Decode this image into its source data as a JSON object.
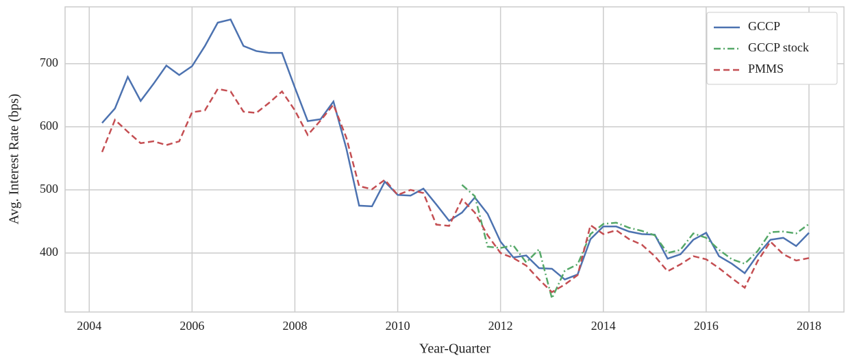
{
  "chart_data": {
    "type": "line",
    "xlabel": "Year-Quarter",
    "ylabel": "Avg. Interest Rate (bps)",
    "x": [
      2004.25,
      2004.5,
      2004.75,
      2005,
      2005.25,
      2005.5,
      2005.75,
      2006,
      2006.25,
      2006.5,
      2006.75,
      2007,
      2007.25,
      2007.5,
      2007.75,
      2008,
      2008.25,
      2008.5,
      2008.75,
      2009,
      2009.25,
      2009.5,
      2009.75,
      2010,
      2010.25,
      2010.5,
      2010.75,
      2011,
      2011.25,
      2011.5,
      2011.75,
      2012,
      2012.25,
      2012.5,
      2012.75,
      2013,
      2013.25,
      2013.5,
      2013.75,
      2014,
      2014.25,
      2014.5,
      2014.75,
      2015,
      2015.25,
      2015.5,
      2015.75,
      2016,
      2016.25,
      2016.5,
      2016.75,
      2017,
      2017.25,
      2017.5,
      2017.75,
      2018
    ],
    "series": [
      {
        "name": "GCCP",
        "color": "#4c72b0",
        "linestyle": "solid",
        "values": [
          606,
          629,
          679,
          641,
          668,
          697,
          682,
          696,
          728,
          765,
          770,
          728,
          720,
          717,
          717,
          662,
          609,
          612,
          640,
          566,
          475,
          474,
          513,
          492,
          491,
          502,
          477,
          451,
          464,
          488,
          462,
          418,
          393,
          396,
          376,
          375,
          358,
          366,
          422,
          442,
          442,
          434,
          430,
          429,
          391,
          398,
          421,
          432,
          395,
          383,
          368,
          397,
          421,
          424,
          411,
          432
        ]
      },
      {
        "name": "GCCP stock",
        "color": "#55a868",
        "linestyle": "dashdot",
        "values": [
          null,
          null,
          null,
          null,
          null,
          null,
          null,
          null,
          null,
          null,
          null,
          null,
          null,
          null,
          null,
          null,
          null,
          null,
          null,
          null,
          null,
          null,
          null,
          null,
          null,
          null,
          null,
          null,
          508,
          490,
          410,
          408,
          412,
          385,
          406,
          328,
          372,
          382,
          430,
          446,
          448,
          440,
          435,
          428,
          400,
          405,
          431,
          424,
          405,
          390,
          383,
          403,
          433,
          434,
          431,
          446
        ]
      },
      {
        "name": "PMMS",
        "color": "#c44e52",
        "linestyle": "dashed",
        "values": [
          560,
          611,
          592,
          574,
          577,
          571,
          577,
          623,
          626,
          660,
          656,
          624,
          622,
          638,
          656,
          626,
          587,
          610,
          635,
          583,
          506,
          501,
          516,
          492,
          500,
          495,
          445,
          443,
          485,
          464,
          428,
          400,
          392,
          380,
          358,
          338,
          350,
          365,
          444,
          430,
          436,
          422,
          413,
          395,
          371,
          382,
          395,
          390,
          376,
          360,
          345,
          387,
          418,
          398,
          388,
          392
        ]
      }
    ],
    "xlim": [
      2003.53,
      2018.68
    ],
    "xticks": [
      2004,
      2006,
      2008,
      2010,
      2012,
      2014,
      2016,
      2018
    ],
    "ylim": [
      306.5,
      790
    ],
    "yticks": [
      400,
      500,
      600,
      700
    ],
    "grid": true,
    "legend": "upper right"
  }
}
